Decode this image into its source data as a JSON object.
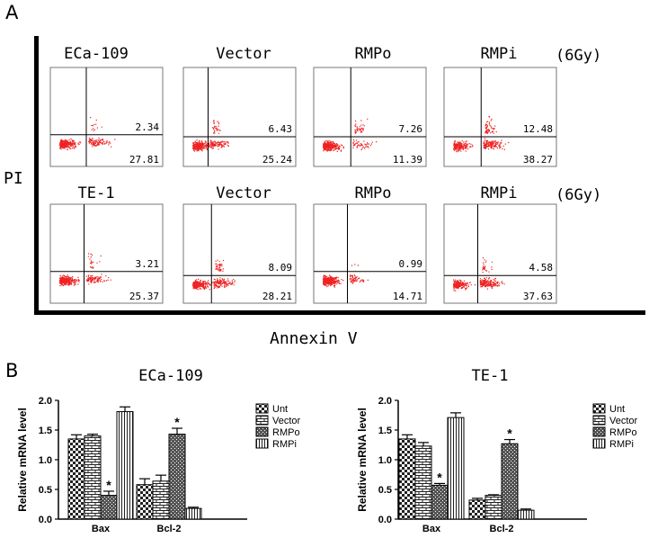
{
  "panels": {
    "a_label": "A",
    "b_label": "B"
  },
  "panel_a": {
    "y_axis_label": "PI",
    "x_axis_label": "Annexin V",
    "dose_label": "(6Gy)",
    "rows": [
      {
        "titles": [
          "ECa-109",
          "Vector",
          "RMPo",
          "RMPi"
        ],
        "upper_right": [
          "2.34",
          "6.43",
          "7.26",
          "12.48"
        ],
        "lower_right": [
          "27.81",
          "25.24",
          "11.39",
          "38.27"
        ]
      },
      {
        "titles": [
          "TE-1",
          "Vector",
          "RMPo",
          "RMPi"
        ],
        "upper_right": [
          "3.21",
          "8.09",
          "0.99",
          "4.58"
        ],
        "lower_right": [
          "25.37",
          "28.21",
          "14.71",
          "37.63"
        ]
      }
    ]
  },
  "chart_data": [
    {
      "type": "bar",
      "title": "ECa-109",
      "categories": [
        "Bax",
        "Bcl-2"
      ],
      "series": [
        {
          "name": "Unt",
          "values": [
            1.35,
            0.58
          ],
          "errors": [
            0.07,
            0.1
          ]
        },
        {
          "name": "Vector",
          "values": [
            1.4,
            0.64
          ],
          "errors": [
            0.03,
            0.1
          ]
        },
        {
          "name": "RMPo",
          "values": [
            0.4,
            1.43
          ],
          "errors": [
            0.07,
            0.1
          ]
        },
        {
          "name": "RMPi",
          "values": [
            1.81,
            0.18
          ],
          "errors": [
            0.08,
            0.02
          ]
        }
      ],
      "significance": [
        {
          "category": "Bax",
          "series": "RMPo",
          "label": "*"
        },
        {
          "category": "Bcl-2",
          "series": "RMPo",
          "label": "*"
        }
      ],
      "xlabel": "",
      "ylabel": "Relative mRNA level",
      "ylim": [
        0.0,
        2.0
      ],
      "yticks": [
        "0.0",
        "0.5",
        "1.0",
        "1.5",
        "2.0"
      ]
    },
    {
      "type": "bar",
      "title": "TE-1",
      "categories": [
        "Bax",
        "Bcl-2"
      ],
      "series": [
        {
          "name": "Unt",
          "values": [
            1.35,
            0.32
          ],
          "errors": [
            0.07,
            0.03
          ]
        },
        {
          "name": "Vector",
          "values": [
            1.23,
            0.4
          ],
          "errors": [
            0.06,
            0.01
          ]
        },
        {
          "name": "RMPo",
          "values": [
            0.57,
            1.27
          ],
          "errors": [
            0.03,
            0.07
          ]
        },
        {
          "name": "RMPi",
          "values": [
            1.71,
            0.15
          ],
          "errors": [
            0.08,
            0.02
          ]
        }
      ],
      "significance": [
        {
          "category": "Bax",
          "series": "RMPo",
          "label": "*"
        },
        {
          "category": "Bcl-2",
          "series": "RMPo",
          "label": "*"
        }
      ],
      "xlabel": "",
      "ylabel": "Relative mRNA level",
      "ylim": [
        0.0,
        2.0
      ],
      "yticks": [
        "0.0",
        "0.5",
        "1.0",
        "1.5",
        "2.0"
      ]
    }
  ]
}
